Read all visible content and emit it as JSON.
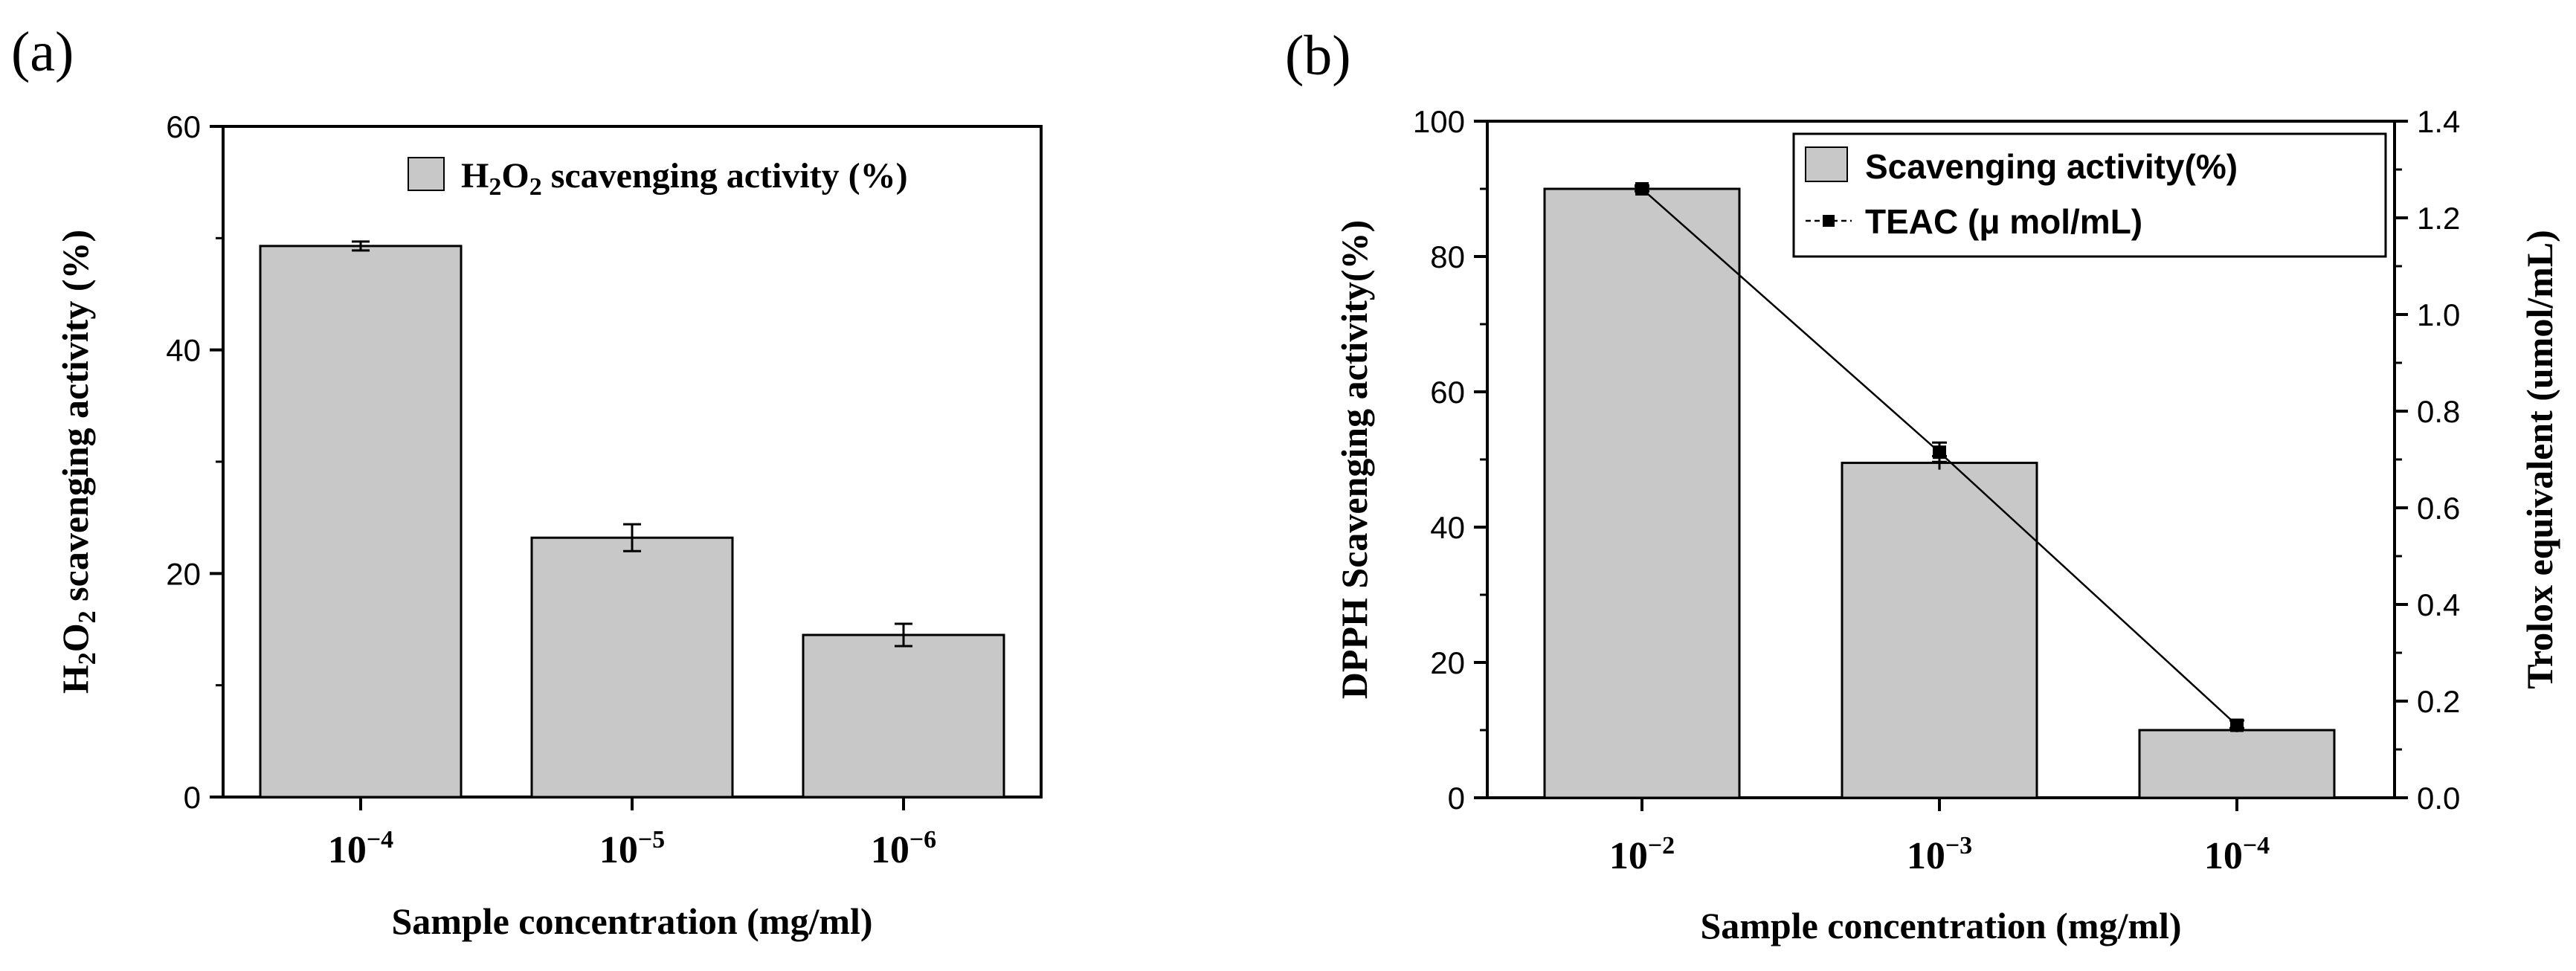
{
  "chart_data": [
    {
      "panel_label": "(a)",
      "type": "bar",
      "categories": [
        {
          "base": "10",
          "exp": "−4"
        },
        {
          "base": "10",
          "exp": "−5"
        },
        {
          "base": "10",
          "exp": "−6"
        }
      ],
      "series": [
        {
          "name": "H2O2 scavenging activity (%)",
          "values": [
            49.3,
            23.2,
            14.5
          ],
          "errors": [
            0.4,
            1.2,
            1.0
          ]
        }
      ],
      "legend": {
        "pre": "H",
        "sub1": "2",
        "mid": "O",
        "sub2": "2",
        "post": " scavenging activity (%)"
      },
      "xlabel": "Sample concentration (mg/ml)",
      "ylabel": {
        "pre": "H",
        "sub1": "2",
        "mid": "O",
        "sub2": "2",
        "post": " scavenging activity (%)"
      },
      "ylim": [
        0,
        60
      ],
      "yticks": [
        "0",
        "20",
        "40",
        "60"
      ],
      "bar_color": "#c8c8c8"
    },
    {
      "panel_label": "(b)",
      "type": "bar",
      "categories": [
        {
          "base": "10",
          "exp": "−2"
        },
        {
          "base": "10",
          "exp": "−3"
        },
        {
          "base": "10",
          "exp": "−4"
        }
      ],
      "series": [
        {
          "name": "Scavenging activity(%)",
          "type": "bar",
          "axis": "left",
          "values": [
            90,
            49.5,
            10
          ],
          "errors": [
            0.5,
            1.0,
            0.3
          ]
        },
        {
          "name": "TEAC (μ mol/mL)",
          "type": "line",
          "axis": "right",
          "values": [
            1.26,
            0.715,
            0.15
          ],
          "errors": [
            0.005,
            0.02,
            0.01
          ]
        }
      ],
      "legend": {
        "bar": "Scavenging activity(%)",
        "line": "TEAC (μ mol/mL)"
      },
      "xlabel": "Sample concentration (mg/ml)",
      "ylabel_left": "DPPH Scavenging activity(%)",
      "ylabel_right": "Trolox equivalent  (umol/mL)",
      "ylim_left": [
        0,
        100
      ],
      "ylim_right": [
        0,
        1.4
      ],
      "yticks_left": [
        "0",
        "20",
        "40",
        "60",
        "80",
        "100"
      ],
      "yticks_right": [
        "0.0",
        "0.2",
        "0.4",
        "0.6",
        "0.8",
        "1.0",
        "1.2",
        "1.4"
      ],
      "bar_color": "#c8c8c8"
    }
  ]
}
